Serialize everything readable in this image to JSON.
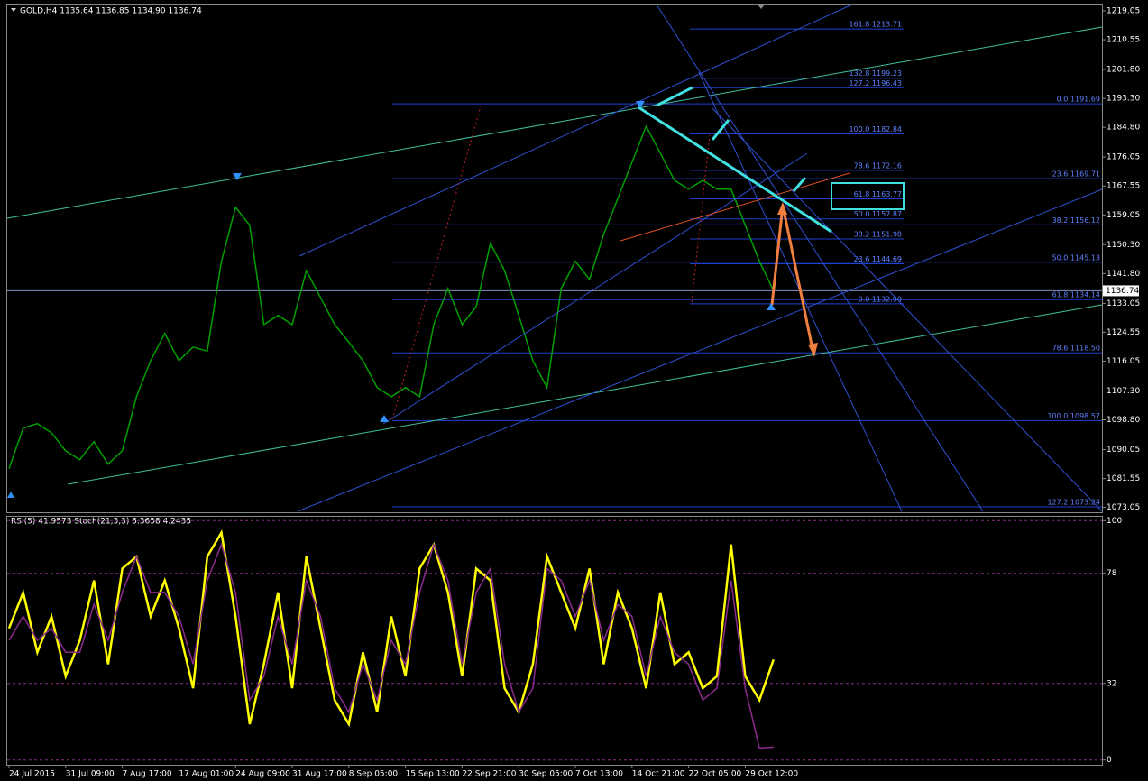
{
  "chart_data": [
    {
      "type": "line",
      "title": "GOLD,H4  1135.64 1136.85 1134.90 1136.74",
      "categories": [
        "24 Jul 2015",
        null,
        null,
        null,
        "31 Jul 09:00",
        null,
        null,
        null,
        "7 Aug 17:00",
        null,
        null,
        null,
        "17 Aug 01:00",
        null,
        null,
        null,
        "24 Aug 09:00",
        null,
        null,
        null,
        "31 Aug 17:00",
        null,
        null,
        null,
        "8 Sep 05:00",
        null,
        null,
        null,
        "15 Sep 13:00",
        null,
        null,
        null,
        "22 Sep 21:00",
        null,
        null,
        null,
        "30 Sep 05:00",
        null,
        null,
        null,
        "7 Oct 13:00",
        null,
        null,
        null,
        "14 Oct 21:00",
        null,
        null,
        null,
        "22 Oct 05:00",
        null,
        null,
        null,
        "29 Oct 12:00",
        null,
        null,
        null,
        null,
        null,
        null,
        null,
        null,
        null,
        null,
        null,
        null,
        null,
        null,
        null,
        null,
        null,
        null,
        null,
        null,
        null,
        null,
        null,
        null,
        null
      ],
      "series": [
        {
          "name": "GOLD",
          "color": "#00a000",
          "values": [
            1084.5,
            1096.4,
            1097.7,
            1095,
            1089.7,
            1087.1,
            1092.4,
            1085.8,
            1089.7,
            1105.6,
            1116.2,
            1124.2,
            1116.2,
            1120.2,
            1119,
            1145.4,
            1161.3,
            1156,
            1126.8,
            1129.5,
            1126.8,
            1142.7,
            1134.8,
            1126.8,
            1121.6,
            1116.2,
            1108.3,
            1105.6,
            1108.3,
            1105.6,
            1126.8,
            1137.4,
            1126.8,
            1132.1,
            1150.7,
            1142.7,
            1129.5,
            1116.2,
            1108.3,
            1137.4,
            1145.4,
            1140.1,
            1153.3,
            1163.9,
            1174.5,
            1185.1,
            1177.2,
            1169.2,
            1166.6,
            1169.2,
            1166.6,
            1166.6,
            1156,
            1145.4,
            1136.74,
            null,
            null,
            null,
            null,
            null,
            null,
            null,
            null,
            null,
            null,
            null,
            null,
            null,
            null,
            null,
            null,
            null,
            null,
            null,
            null,
            null,
            null,
            null
          ]
        }
      ],
      "ylim": [
        1071.9,
        1220.9
      ],
      "yticks": [
        1219.05,
        1210.55,
        {
          "value": 1201.8,
          "label": "1201.80"
        },
        {
          "value": 1193.3,
          "label": "1193.30"
        },
        {
          "value": 1184.8,
          "label": "1184.80"
        },
        1176.05,
        1167.55,
        1159.05,
        {
          "value": 1150.3,
          "label": "1150.30"
        },
        {
          "value": 1141.8,
          "label": "1141.80"
        },
        1133.05,
        1124.55,
        1116.05,
        {
          "value": 1107.3,
          "label": "1107.30"
        },
        {
          "value": 1098.8,
          "label": "1098.80"
        },
        1090.05,
        1081.55,
        1073.05
      ],
      "last_price": 1136.74,
      "grid": false,
      "fib_right": [
        {
          "value": 1191.69,
          "label": "0.0  1191.69"
        },
        {
          "value": 1169.71,
          "label": "23.6  1169.71"
        },
        {
          "value": 1156.12,
          "label": "38.2  1156.12"
        },
        {
          "value": 1145.13,
          "label": "50.0   1145.13"
        },
        {
          "value": 1134.14,
          "label": "61.8  1134.14"
        },
        {
          "value": 1118.5,
          "label": "78.6  1118.50"
        },
        {
          "value": 1098.57,
          "label": "100.0  1098.57"
        },
        {
          "value": 1073.24,
          "label": "127.2  1073.24"
        }
      ],
      "fib_inner": [
        {
          "value": 1213.71,
          "label": "161.8  1213.71"
        },
        {
          "value": 1199.23,
          "label": "132.8  1199.23"
        },
        {
          "value": 1196.43,
          "label": "127.2  1196.43"
        },
        {
          "value": 1182.84,
          "label": "100.0  1182.84"
        },
        {
          "value": 1172.16,
          "label": "78.6  1172.16"
        },
        {
          "value": 1163.77,
          "label": "61.8  1163.77"
        },
        {
          "value": 1157.87,
          "label": "50.0  1157.87"
        },
        {
          "value": 1151.98,
          "label": "38.2  1151.98"
        },
        {
          "value": 1144.69,
          "label": "23.6  1144.69"
        },
        {
          "value": 1132.9,
          "label": "0.0  1132.90"
        }
      ]
    },
    {
      "type": "line",
      "title": "RSI(5) 41.9573  Stoch(21,3,3) 5.3658 4.2435",
      "series": [
        {
          "name": "RSI(5)",
          "color": "#ffff00",
          "values": [
            55,
            70,
            45,
            60,
            35,
            50,
            75,
            40,
            80,
            85,
            60,
            75,
            55,
            30,
            85,
            95,
            60,
            15,
            40,
            70,
            30,
            85,
            55,
            25,
            15,
            45,
            20,
            60,
            35,
            80,
            90,
            70,
            35,
            80,
            75,
            30,
            20,
            40,
            85,
            70,
            55,
            80,
            40,
            70,
            55,
            30,
            70,
            40,
            45,
            30,
            35,
            90,
            35,
            25,
            41.96
          ]
        },
        {
          "name": "Stoch(21,3,3)",
          "color": "#8b2b8b",
          "values": [
            50,
            60,
            50,
            55,
            45,
            45,
            65,
            50,
            70,
            85,
            70,
            70,
            60,
            40,
            75,
            90,
            70,
            25,
            35,
            60,
            40,
            75,
            60,
            30,
            20,
            40,
            25,
            50,
            40,
            70,
            90,
            75,
            40,
            70,
            80,
            40,
            20,
            30,
            80,
            75,
            60,
            75,
            50,
            65,
            60,
            35,
            60,
            45,
            40,
            25,
            30,
            75,
            30,
            5,
            5.37
          ]
        }
      ],
      "ylim": [
        -2,
        102
      ],
      "yticks": [
        100,
        78,
        32,
        0
      ],
      "grid": true
    }
  ]
}
